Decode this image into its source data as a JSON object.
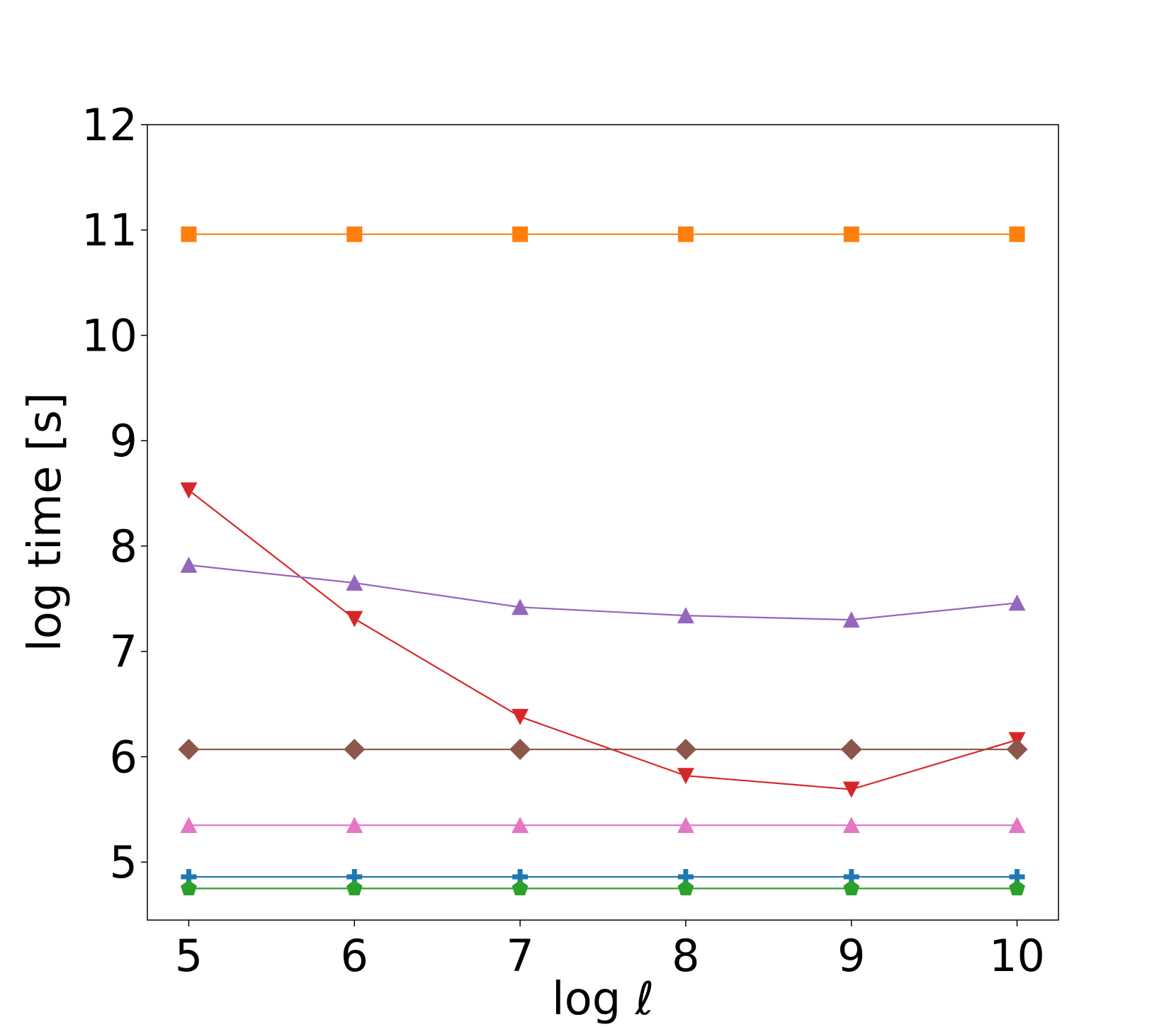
{
  "chart_data": {
    "type": "line",
    "title": "",
    "xlabel": "log ℓ",
    "ylabel": "log time [s]",
    "x": [
      5,
      6,
      7,
      8,
      9,
      10
    ],
    "xlim": [
      4.75,
      10.25
    ],
    "ylim": [
      4.45,
      12.0
    ],
    "xticks": [
      5,
      6,
      7,
      8,
      9,
      10
    ],
    "yticks": [
      5,
      6,
      7,
      8,
      9,
      10,
      11,
      12
    ],
    "grid": false,
    "legend": "none",
    "series": [
      {
        "color": "#ff7f0e",
        "marker": "square",
        "values": [
          10.96,
          10.96,
          10.96,
          10.96,
          10.96,
          10.96
        ]
      },
      {
        "color": "#d62728",
        "marker": "triangle-down",
        "values": [
          8.53,
          7.31,
          6.38,
          5.82,
          5.69,
          6.16
        ]
      },
      {
        "color": "#9467bd",
        "marker": "triangle-up",
        "values": [
          7.82,
          7.65,
          7.42,
          7.34,
          7.3,
          7.46
        ]
      },
      {
        "color": "#8c564b",
        "marker": "diamond",
        "values": [
          6.07,
          6.07,
          6.07,
          6.07,
          6.07,
          6.07
        ]
      },
      {
        "color": "#e377c2",
        "marker": "triangle-up",
        "values": [
          5.35,
          5.35,
          5.35,
          5.35,
          5.35,
          5.35
        ]
      },
      {
        "color": "#1f77b4",
        "marker": "plus",
        "values": [
          4.86,
          4.86,
          4.86,
          4.86,
          4.86,
          4.86
        ]
      },
      {
        "color": "#2ca02c",
        "marker": "pentagon",
        "values": [
          4.75,
          4.75,
          4.75,
          4.75,
          4.75,
          4.75
        ]
      }
    ]
  }
}
